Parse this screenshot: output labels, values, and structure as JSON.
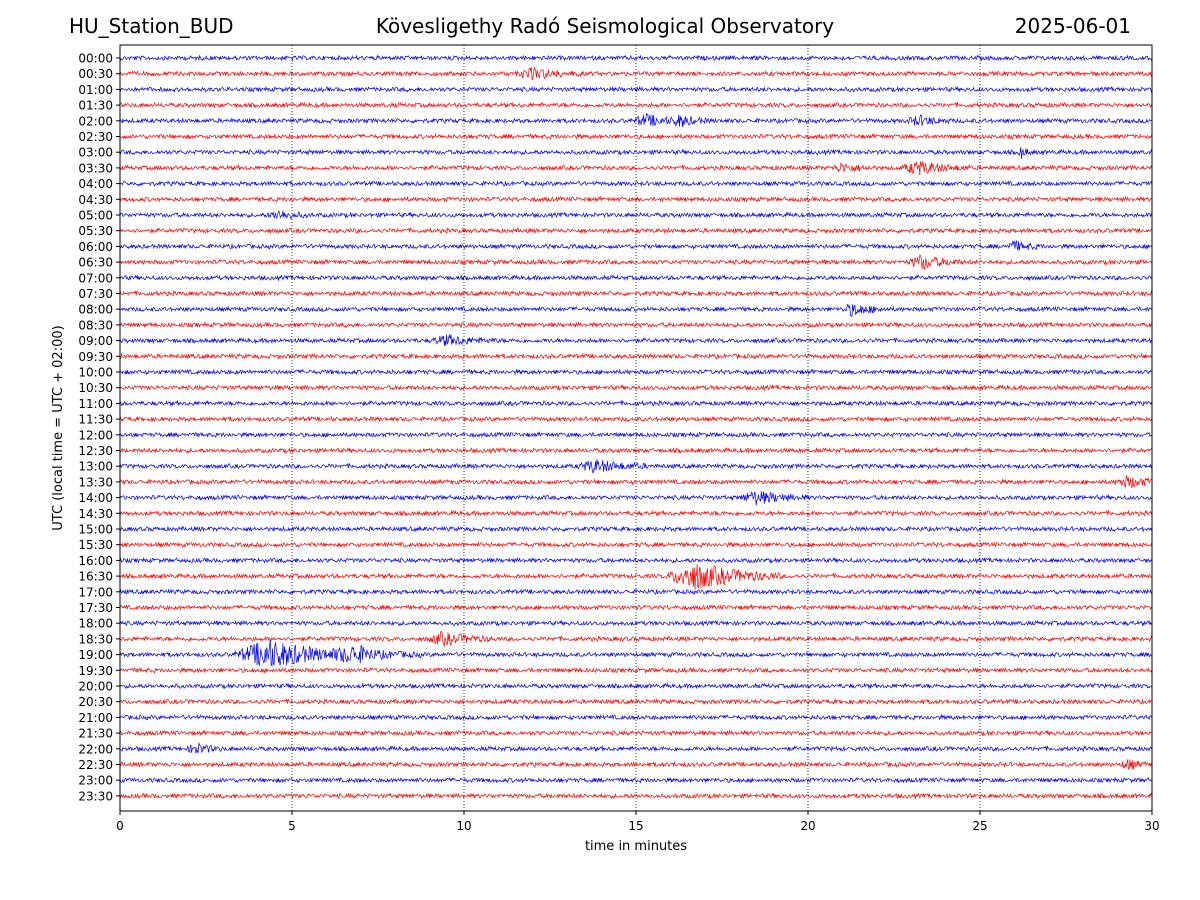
{
  "header": {
    "station": "HU_Station_BUD",
    "observatory": "Kövesligethy Radó Seismological Observatory",
    "date": "2025-06-01"
  },
  "chart_data": {
    "type": "line",
    "title": "Kövesligethy Radó Seismological Observatory",
    "xlabel": "time in minutes",
    "ylabel": "UTC (local time = UTC + 02:00)",
    "xlim": [
      0,
      30
    ],
    "x_ticks": [
      0,
      5,
      10,
      15,
      20,
      25,
      30
    ],
    "x_gridlines": [
      5,
      10,
      15,
      20,
      25
    ],
    "row_labels": [
      "00:00",
      "00:30",
      "01:00",
      "01:30",
      "02:00",
      "02:30",
      "03:00",
      "03:30",
      "04:00",
      "04:30",
      "05:00",
      "05:30",
      "06:00",
      "06:30",
      "07:00",
      "07:30",
      "08:00",
      "08:30",
      "09:00",
      "09:30",
      "10:00",
      "10:30",
      "11:00",
      "11:30",
      "12:00",
      "12:30",
      "13:00",
      "13:30",
      "14:00",
      "14:30",
      "15:00",
      "15:30",
      "16:00",
      "16:30",
      "17:00",
      "17:30",
      "18:00",
      "18:30",
      "19:00",
      "19:30",
      "20:00",
      "20:30",
      "21:00",
      "21:30",
      "22:00",
      "22:30",
      "23:00",
      "23:30"
    ],
    "trace_colors": [
      "#0000ee",
      "#ff0000"
    ],
    "events": [
      {
        "row": "00:30",
        "minute": 12.0,
        "duration": 1.5,
        "strength": 1.2
      },
      {
        "row": "02:00",
        "minute": 15.3,
        "duration": 1.2,
        "strength": 1.3
      },
      {
        "row": "02:00",
        "minute": 16.3,
        "duration": 0.9,
        "strength": 1.1
      },
      {
        "row": "02:00",
        "minute": 23.2,
        "duration": 1.0,
        "strength": 1.1
      },
      {
        "row": "03:00",
        "minute": 26.2,
        "duration": 0.3,
        "strength": 1.3
      },
      {
        "row": "03:30",
        "minute": 23.2,
        "duration": 1.5,
        "strength": 1.5
      },
      {
        "row": "03:30",
        "minute": 21.0,
        "duration": 1.0,
        "strength": 0.9
      },
      {
        "row": "05:00",
        "minute": 4.6,
        "duration": 1.0,
        "strength": 1.0
      },
      {
        "row": "06:00",
        "minute": 26.0,
        "duration": 0.8,
        "strength": 1.1
      },
      {
        "row": "06:30",
        "minute": 23.3,
        "duration": 1.2,
        "strength": 1.6
      },
      {
        "row": "08:00",
        "minute": 21.3,
        "duration": 1.0,
        "strength": 1.4
      },
      {
        "row": "09:00",
        "minute": 9.5,
        "duration": 1.5,
        "strength": 1.1
      },
      {
        "row": "13:00",
        "minute": 13.8,
        "duration": 1.6,
        "strength": 1.4
      },
      {
        "row": "13:30",
        "minute": 29.3,
        "duration": 1.2,
        "strength": 1.2
      },
      {
        "row": "14:00",
        "minute": 18.5,
        "duration": 1.5,
        "strength": 1.5
      },
      {
        "row": "16:30",
        "minute": 16.7,
        "duration": 2.5,
        "strength": 3.2
      },
      {
        "row": "18:30",
        "minute": 9.4,
        "duration": 1.5,
        "strength": 1.4
      },
      {
        "row": "19:00",
        "minute": 4.3,
        "duration": 3.0,
        "strength": 3.4
      },
      {
        "row": "19:00",
        "minute": 6.8,
        "duration": 2.0,
        "strength": 1.5
      },
      {
        "row": "22:00",
        "minute": 2.2,
        "duration": 0.8,
        "strength": 1.2
      },
      {
        "row": "22:30",
        "minute": 29.3,
        "duration": 0.6,
        "strength": 1.1
      }
    ],
    "grid": "x-dotted",
    "legend": "none"
  }
}
